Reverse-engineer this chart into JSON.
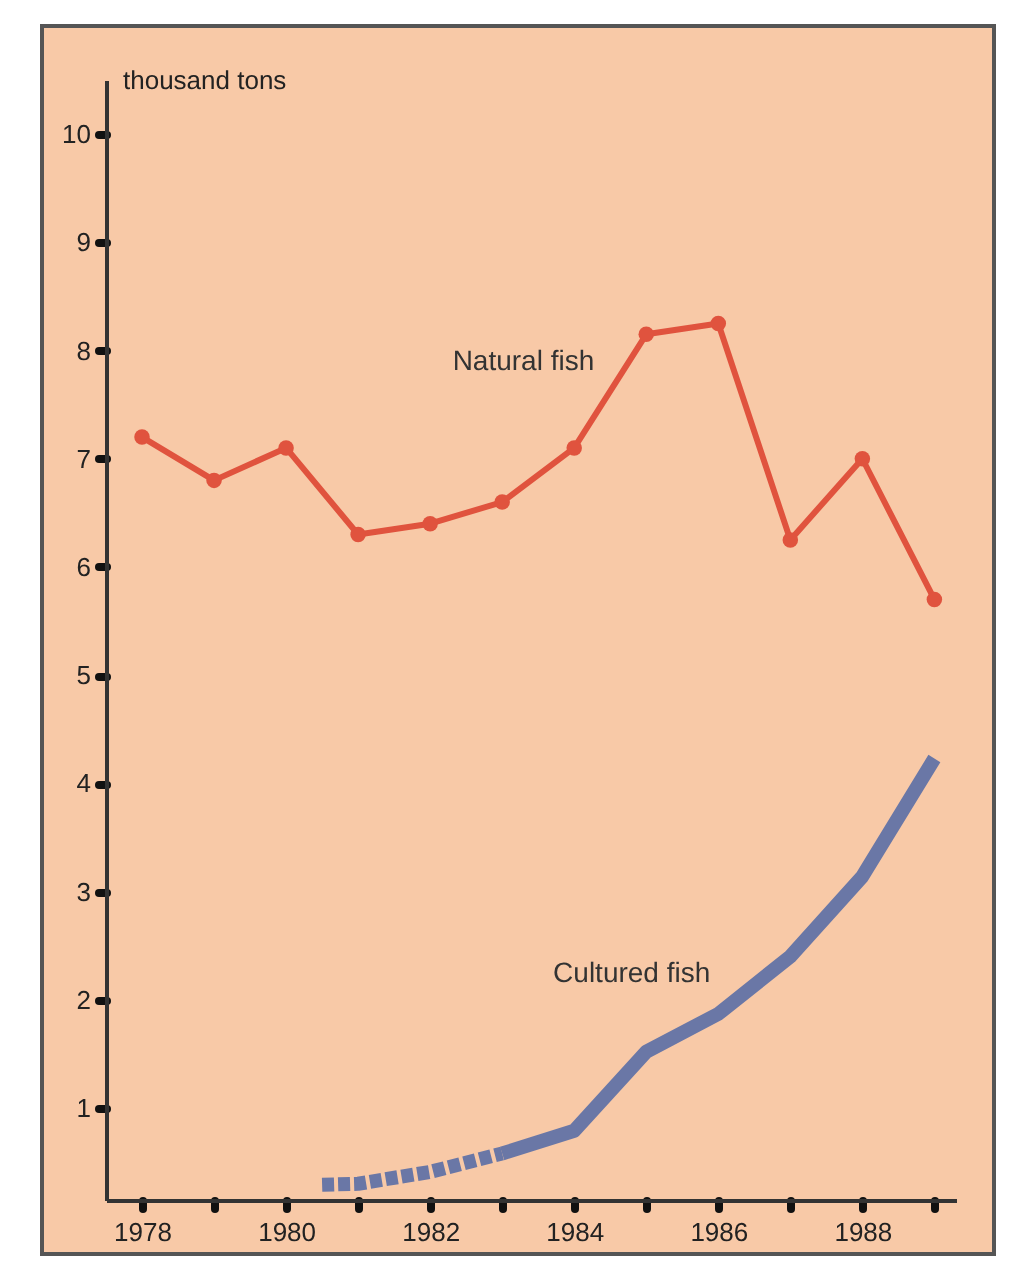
{
  "chart_data": {
    "type": "line",
    "ylabel": "thousand tons",
    "xlim": [
      1977.5,
      1989.3
    ],
    "ylim": [
      0.15,
      10.5
    ],
    "xticks": [
      1978,
      {
        "value": 1979,
        "label": null
      },
      1980,
      {
        "value": 1981,
        "label": null
      },
      1982,
      {
        "value": 1983,
        "label": null
      },
      1984,
      {
        "value": 1985,
        "label": null
      },
      1986,
      {
        "value": 1987,
        "label": null
      },
      1988,
      {
        "value": 1989,
        "label": null
      }
    ],
    "yticks": [
      1,
      2,
      3,
      4,
      5,
      6,
      7,
      8,
      9,
      10
    ],
    "series": [
      {
        "name": "Natural fish",
        "color": "#e0533e",
        "marker": "circle",
        "line_style": "solid",
        "x": [
          1978,
          1979,
          1980,
          1981,
          1982,
          1983,
          1984,
          1985,
          1986,
          1987,
          1988,
          1989
        ],
        "values": [
          7.2,
          6.8,
          7.1,
          6.3,
          6.4,
          6.6,
          7.1,
          8.15,
          8.25,
          6.25,
          7.0,
          5.7
        ]
      },
      {
        "color": "#6a77a6",
        "marker": "none",
        "line_style": "dashed",
        "x": [
          1980.5,
          1981,
          1982,
          1983
        ],
        "values": [
          0.29,
          0.3,
          0.41,
          0.58
        ]
      },
      {
        "name": "Cultured fish",
        "color": "#6a77a6",
        "marker": "none",
        "line_style": "solid",
        "x": [
          1983,
          1984,
          1985,
          1986,
          1987,
          1988,
          1989
        ],
        "values": [
          0.58,
          0.79,
          1.52,
          1.87,
          2.4,
          3.14,
          4.23
        ]
      }
    ],
    "grid": false
  }
}
